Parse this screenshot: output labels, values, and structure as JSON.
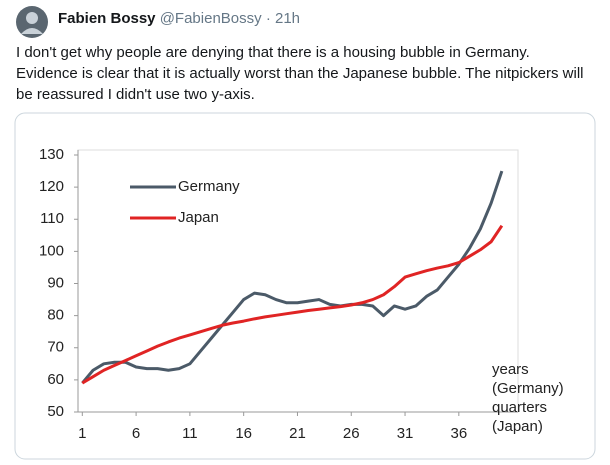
{
  "tweet": {
    "name": "Fabien Bossy",
    "handle": "@FabienBossy",
    "time": "21h",
    "text": "I don't get why people are denying that there is a housing bubble in Germany. Evidence is clear that it is actually worst than the Japanese bubble. The nitpickers will be reassured I didn't use two y-axis."
  },
  "chart_data": {
    "type": "line",
    "x": [
      1,
      2,
      3,
      4,
      5,
      6,
      7,
      8,
      9,
      10,
      11,
      12,
      13,
      14,
      15,
      16,
      17,
      18,
      19,
      20,
      21,
      22,
      23,
      24,
      25,
      26,
      27,
      28,
      29,
      30,
      31,
      32,
      33,
      34,
      35,
      36,
      37,
      38,
      39,
      40
    ],
    "series": [
      {
        "name": "Germany",
        "color": "#4b5a68",
        "values": [
          59,
          63,
          65,
          65.5,
          65.5,
          64,
          63.5,
          63.5,
          63,
          63.5,
          65,
          69,
          73,
          77,
          81,
          85,
          87,
          86.5,
          85,
          84,
          84,
          84.5,
          85,
          83.5,
          83,
          83.5,
          83.5,
          83,
          80,
          83,
          82,
          83,
          86,
          88,
          92,
          96,
          101,
          107,
          115,
          125
        ]
      },
      {
        "name": "Japan",
        "color": "#e02424",
        "values": [
          59,
          61,
          63,
          64.5,
          66,
          67.5,
          69,
          70.5,
          71.8,
          73,
          74,
          75,
          76,
          77,
          77.7,
          78.3,
          79,
          79.6,
          80.1,
          80.6,
          81.1,
          81.6,
          82,
          82.4,
          82.8,
          83.3,
          84,
          85,
          86.5,
          89,
          92,
          93,
          94,
          94.8,
          95.5,
          96.5,
          98.5,
          100.5,
          103,
          108
        ]
      }
    ],
    "xlabel": [
      "years",
      "(Germany)",
      "quarters",
      "(Japan)"
    ],
    "xlim": [
      0.6,
      41.5
    ],
    "xticks": [
      1,
      6,
      11,
      16,
      21,
      26,
      31,
      36
    ],
    "ylim": [
      50,
      130
    ],
    "yticks": [
      50,
      60,
      70,
      80,
      90,
      100,
      110,
      120,
      130
    ],
    "grid": false,
    "legend": "upper left"
  }
}
